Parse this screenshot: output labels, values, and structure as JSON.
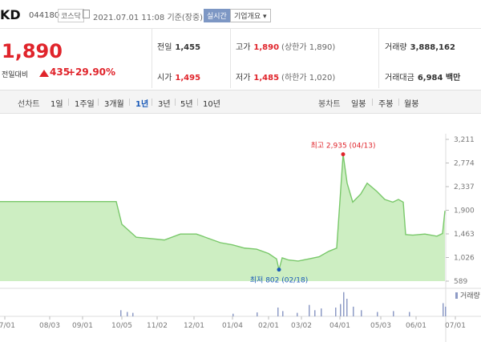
{
  "header": {
    "name": "KD",
    "code": "044180",
    "market": "코스닥",
    "timestamp": "2021.07.01 11:08",
    "basis": "기준(장중)",
    "realtime_label": "실시간",
    "company_info_label": "기업개요 ▾"
  },
  "price": {
    "current": "1,890",
    "compare_label": "전일대비",
    "change": "435",
    "change_pct": "+29.90%",
    "up_color": "#e0242b"
  },
  "stats": {
    "prev_close_label": "전일",
    "prev_close": "1,455",
    "open_label": "시가",
    "open": "1,495",
    "high_label": "고가",
    "high": "1,890",
    "upper_limit": "(상한가 1,890)",
    "low_label": "저가",
    "low": "1,485",
    "lower_limit": "(하한가 1,020)",
    "volume_label": "거래량",
    "volume": "3,888,162",
    "amount_label": "거래대금",
    "amount": "6,984 백만"
  },
  "tabs": {
    "line_chart_label": "선차트",
    "periods": [
      "1일",
      "1주일",
      "3개월",
      "1년",
      "3년",
      "5년",
      "10년"
    ],
    "active_period": "1년",
    "candle_label": "봉차트",
    "candles": [
      "일봉",
      "주봉",
      "월봉"
    ]
  },
  "chart_data": {
    "type": "area",
    "ytick_labels": [
      "3,211",
      "2,774",
      "2,337",
      "1,900",
      "1,463",
      "1,026",
      "589"
    ],
    "ylim": [
      589,
      3211
    ],
    "xtick_labels": [
      "07/01",
      "08/03",
      "09/01",
      "10/05",
      "11/02",
      "12/01",
      "01/04",
      "02/01",
      "03/02",
      "04/01",
      "05/03",
      "06/01",
      "07/01"
    ],
    "high_annotation": "최고 2,935 (04/13)",
    "low_annotation": "최저 802 (02/18)",
    "volume_label": "거래량",
    "line_color": "#79c86a",
    "fill_color": "#cdeec2",
    "high_marker_color": "#e0242b",
    "low_marker_color": "#1a5ab8",
    "price_series": [
      [
        0,
        2060
      ],
      [
        145,
        2060
      ],
      [
        152,
        1640
      ],
      [
        170,
        1400
      ],
      [
        185,
        1380
      ],
      [
        205,
        1350
      ],
      [
        225,
        1460
      ],
      [
        245,
        1460
      ],
      [
        260,
        1380
      ],
      [
        275,
        1300
      ],
      [
        290,
        1260
      ],
      [
        305,
        1200
      ],
      [
        320,
        1180
      ],
      [
        335,
        1100
      ],
      [
        345,
        1000
      ],
      [
        348,
        802
      ],
      [
        352,
        1020
      ],
      [
        360,
        980
      ],
      [
        372,
        960
      ],
      [
        385,
        1000
      ],
      [
        398,
        1040
      ],
      [
        410,
        1140
      ],
      [
        420,
        1200
      ],
      [
        428,
        2935
      ],
      [
        433,
        2400
      ],
      [
        440,
        2050
      ],
      [
        450,
        2200
      ],
      [
        458,
        2400
      ],
      [
        470,
        2250
      ],
      [
        480,
        2100
      ],
      [
        490,
        2050
      ],
      [
        497,
        2100
      ],
      [
        503,
        2050
      ],
      [
        506,
        1450
      ],
      [
        515,
        1440
      ],
      [
        530,
        1460
      ],
      [
        545,
        1420
      ],
      [
        552,
        1470
      ],
      [
        555,
        1890
      ]
    ],
    "volume_bars": [
      [
        150,
        14
      ],
      [
        158,
        10
      ],
      [
        165,
        8
      ],
      [
        290,
        6
      ],
      [
        320,
        9
      ],
      [
        346,
        20
      ],
      [
        352,
        12
      ],
      [
        370,
        8
      ],
      [
        385,
        26
      ],
      [
        392,
        14
      ],
      [
        400,
        18
      ],
      [
        418,
        20
      ],
      [
        424,
        28
      ],
      [
        428,
        55
      ],
      [
        432,
        40
      ],
      [
        440,
        22
      ],
      [
        450,
        14
      ],
      [
        470,
        10
      ],
      [
        490,
        12
      ],
      [
        510,
        10
      ],
      [
        552,
        30
      ],
      [
        555,
        22
      ]
    ]
  }
}
